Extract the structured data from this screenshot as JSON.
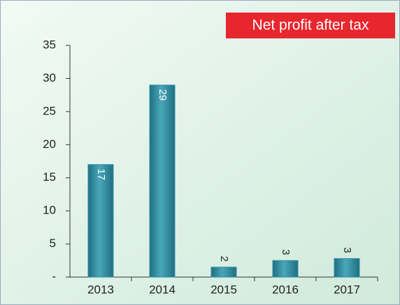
{
  "chart_data": {
    "type": "bar",
    "title": "Net profit after tax",
    "categories": [
      "2013",
      "2014",
      "2015",
      "2016",
      "2017"
    ],
    "values": [
      17,
      29,
      1.5,
      2.5,
      2.8
    ],
    "value_labels": [
      "17",
      "29",
      "2",
      "3",
      "3"
    ],
    "color": "#2f8ea3",
    "ylim": [
      0,
      35
    ],
    "yticks": [
      {
        "value": 0,
        "label": "-"
      },
      5,
      10,
      15,
      20,
      25,
      30,
      35
    ]
  }
}
